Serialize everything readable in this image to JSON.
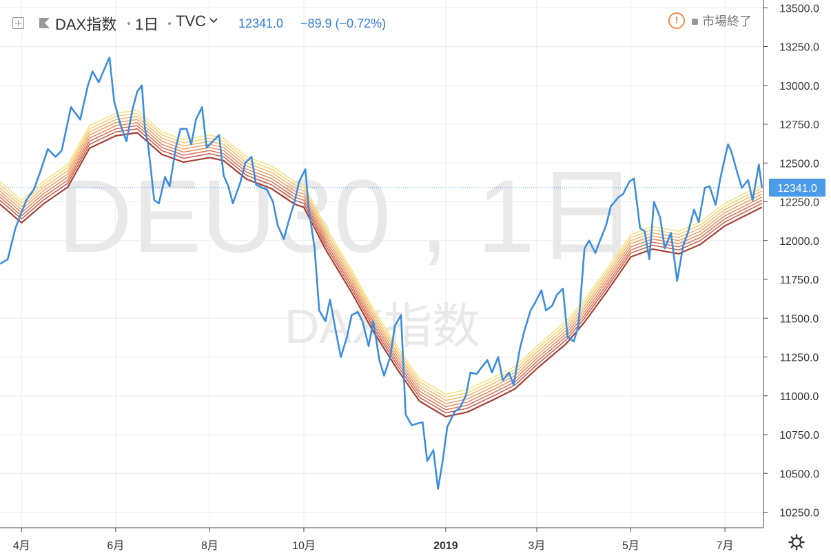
{
  "header": {
    "symbol": "DAX指数",
    "interval": "1日",
    "source": "TVC",
    "last": "12341.0",
    "change": "−89.9 (−0.72%)",
    "market_status": "市場終了"
  },
  "watermark": {
    "line1": "DEU30 , 1日",
    "line2": "DAX指数"
  },
  "colors": {
    "price": "#3b8de0",
    "grid": "#ececec",
    "axis": "#555",
    "lastprice_bg": "#4a9be8",
    "ribbon": [
      "#f5e27a",
      "#f6cf70",
      "#f3b66a",
      "#eea062",
      "#e6895a",
      "#d86f4f",
      "#c55943",
      "#a83c30"
    ]
  },
  "icons": {
    "expand": "expand-icon",
    "flag": "flag-icon",
    "warning": "warning-icon",
    "settings": "gear-icon"
  },
  "chart_data": {
    "type": "line",
    "title": "DAX指数 · 1日 · TVC",
    "ylim": [
      10150,
      13550
    ],
    "y_ticks": [
      13500,
      13250,
      13000,
      12750,
      12500,
      12250,
      12000,
      11750,
      11500,
      11250,
      11000,
      10750,
      10500,
      10250
    ],
    "y_tick_labels": [
      "13500.0",
      "13250.0",
      "13000.0",
      "12750.0",
      "12500.0",
      "12250.0",
      "12000.0",
      "11750.0",
      "11500.0",
      "11250.0",
      "11000.0",
      "10750.0",
      "10500.0",
      "10250.0"
    ],
    "last_price": 12341.0,
    "last_price_label": "12341.0",
    "x_ticks": [
      {
        "label": "4月",
        "date": "2018-04-01"
      },
      {
        "label": "6月",
        "date": "2018-06-01"
      },
      {
        "label": "8月",
        "date": "2018-08-01"
      },
      {
        "label": "10月",
        "date": "2018-10-01"
      },
      {
        "label": "2019",
        "date": "2019-01-01",
        "bold": true
      },
      {
        "label": "3月",
        "date": "2019-03-01"
      },
      {
        "label": "5月",
        "date": "2019-05-01"
      },
      {
        "label": "7月",
        "date": "2019-07-01"
      }
    ],
    "xlim": [
      "2018-03-18",
      "2019-07-26"
    ],
    "grid": true,
    "series": [
      {
        "name": "DAX指数",
        "color": "#3b8de0",
        "points": [
          [
            "2018-03-18",
            11850
          ],
          [
            "2018-03-23",
            11880
          ],
          [
            "2018-03-28",
            12080
          ],
          [
            "2018-04-04",
            12260
          ],
          [
            "2018-04-09",
            12330
          ],
          [
            "2018-04-13",
            12440
          ],
          [
            "2018-04-18",
            12590
          ],
          [
            "2018-04-23",
            12540
          ],
          [
            "2018-04-27",
            12580
          ],
          [
            "2018-05-03",
            12860
          ],
          [
            "2018-05-09",
            12780
          ],
          [
            "2018-05-14",
            13000
          ],
          [
            "2018-05-17",
            13090
          ],
          [
            "2018-05-21",
            13020
          ],
          [
            "2018-05-24",
            13090
          ],
          [
            "2018-05-28",
            13180
          ],
          [
            "2018-05-31",
            12900
          ],
          [
            "2018-06-04",
            12750
          ],
          [
            "2018-06-08",
            12640
          ],
          [
            "2018-06-12",
            12850
          ],
          [
            "2018-06-15",
            12960
          ],
          [
            "2018-06-18",
            13000
          ],
          [
            "2018-06-20",
            12720
          ],
          [
            "2018-06-22",
            12620
          ],
          [
            "2018-06-26",
            12260
          ],
          [
            "2018-06-29",
            12240
          ],
          [
            "2018-07-03",
            12410
          ],
          [
            "2018-07-06",
            12350
          ],
          [
            "2018-07-10",
            12600
          ],
          [
            "2018-07-13",
            12720
          ],
          [
            "2018-07-17",
            12720
          ],
          [
            "2018-07-20",
            12620
          ],
          [
            "2018-07-23",
            12780
          ],
          [
            "2018-07-27",
            12860
          ],
          [
            "2018-07-30",
            12600
          ],
          [
            "2018-08-03",
            12640
          ],
          [
            "2018-08-07",
            12680
          ],
          [
            "2018-08-10",
            12420
          ],
          [
            "2018-08-13",
            12350
          ],
          [
            "2018-08-16",
            12240
          ],
          [
            "2018-08-21",
            12380
          ],
          [
            "2018-08-24",
            12500
          ],
          [
            "2018-08-28",
            12540
          ],
          [
            "2018-08-31",
            12360
          ],
          [
            "2018-09-04",
            12340
          ],
          [
            "2018-09-07",
            12330
          ],
          [
            "2018-09-11",
            12250
          ],
          [
            "2018-09-14",
            12100
          ],
          [
            "2018-09-18",
            12010
          ],
          [
            "2018-09-21",
            12120
          ],
          [
            "2018-09-25",
            12250
          ],
          [
            "2018-09-28",
            12380
          ],
          [
            "2018-10-02",
            12460
          ],
          [
            "2018-10-04",
            12220
          ],
          [
            "2018-10-08",
            11950
          ],
          [
            "2018-10-11",
            11550
          ],
          [
            "2018-10-15",
            11480
          ],
          [
            "2018-10-18",
            11620
          ],
          [
            "2018-10-22",
            11400
          ],
          [
            "2018-10-25",
            11250
          ],
          [
            "2018-10-29",
            11380
          ],
          [
            "2018-11-01",
            11520
          ],
          [
            "2018-11-05",
            11540
          ],
          [
            "2018-11-08",
            11480
          ],
          [
            "2018-11-12",
            11320
          ],
          [
            "2018-11-15",
            11480
          ],
          [
            "2018-11-19",
            11230
          ],
          [
            "2018-11-22",
            11130
          ],
          [
            "2018-11-26",
            11250
          ],
          [
            "2018-11-29",
            11450
          ],
          [
            "2018-12-03",
            11520
          ],
          [
            "2018-12-06",
            10880
          ],
          [
            "2018-12-10",
            10810
          ],
          [
            "2018-12-13",
            10820
          ],
          [
            "2018-12-17",
            10830
          ],
          [
            "2018-12-20",
            10580
          ],
          [
            "2018-12-24",
            10650
          ],
          [
            "2018-12-27",
            10400
          ],
          [
            "2018-12-30",
            10580
          ],
          [
            "2019-01-02",
            10800
          ],
          [
            "2019-01-07",
            10900
          ],
          [
            "2019-01-10",
            10920
          ],
          [
            "2019-01-14",
            11000
          ],
          [
            "2019-01-17",
            11150
          ],
          [
            "2019-01-21",
            11140
          ],
          [
            "2019-01-24",
            11180
          ],
          [
            "2019-01-28",
            11230
          ],
          [
            "2019-01-31",
            11150
          ],
          [
            "2019-02-04",
            11250
          ],
          [
            "2019-02-07",
            11100
          ],
          [
            "2019-02-11",
            11150
          ],
          [
            "2019-02-14",
            11070
          ],
          [
            "2019-02-18",
            11300
          ],
          [
            "2019-02-21",
            11420
          ],
          [
            "2019-02-25",
            11550
          ],
          [
            "2019-02-28",
            11600
          ],
          [
            "2019-03-04",
            11680
          ],
          [
            "2019-03-07",
            11550
          ],
          [
            "2019-03-11",
            11580
          ],
          [
            "2019-03-14",
            11650
          ],
          [
            "2019-03-18",
            11690
          ],
          [
            "2019-03-21",
            11380
          ],
          [
            "2019-03-25",
            11350
          ],
          [
            "2019-03-28",
            11450
          ],
          [
            "2019-04-01",
            11950
          ],
          [
            "2019-04-04",
            12000
          ],
          [
            "2019-04-08",
            11920
          ],
          [
            "2019-04-11",
            12000
          ],
          [
            "2019-04-15",
            12100
          ],
          [
            "2019-04-18",
            12220
          ],
          [
            "2019-04-23",
            12280
          ],
          [
            "2019-04-26",
            12300
          ],
          [
            "2019-04-30",
            12380
          ],
          [
            "2019-05-03",
            12400
          ],
          [
            "2019-05-07",
            12080
          ],
          [
            "2019-05-10",
            12060
          ],
          [
            "2019-05-13",
            11880
          ],
          [
            "2019-05-16",
            12250
          ],
          [
            "2019-05-20",
            12150
          ],
          [
            "2019-05-23",
            11950
          ],
          [
            "2019-05-27",
            12050
          ],
          [
            "2019-05-31",
            11740
          ],
          [
            "2019-06-04",
            11970
          ],
          [
            "2019-06-07",
            12050
          ],
          [
            "2019-06-11",
            12200
          ],
          [
            "2019-06-14",
            12120
          ],
          [
            "2019-06-18",
            12340
          ],
          [
            "2019-06-21",
            12350
          ],
          [
            "2019-06-25",
            12230
          ],
          [
            "2019-06-28",
            12400
          ],
          [
            "2019-07-03",
            12620
          ],
          [
            "2019-07-05",
            12580
          ],
          [
            "2019-07-09",
            12440
          ],
          [
            "2019-07-12",
            12340
          ],
          [
            "2019-07-16",
            12390
          ],
          [
            "2019-07-19",
            12260
          ],
          [
            "2019-07-23",
            12490
          ],
          [
            "2019-07-25",
            12341
          ]
        ]
      }
    ],
    "ribbon": {
      "description": "8 moving-average bands (yellow to dark red)",
      "center": [
        [
          "2018-03-18",
          12320
        ],
        [
          "2018-04-01",
          12200
        ],
        [
          "2018-04-15",
          12320
        ],
        [
          "2018-05-01",
          12430
        ],
        [
          "2018-05-15",
          12680
        ],
        [
          "2018-06-01",
          12760
        ],
        [
          "2018-06-15",
          12780
        ],
        [
          "2018-07-01",
          12640
        ],
        [
          "2018-07-15",
          12590
        ],
        [
          "2018-08-01",
          12620
        ],
        [
          "2018-08-10",
          12600
        ],
        [
          "2018-08-25",
          12480
        ],
        [
          "2018-09-10",
          12420
        ],
        [
          "2018-09-25",
          12320
        ],
        [
          "2018-10-01",
          12300
        ],
        [
          "2018-10-15",
          12030
        ],
        [
          "2018-11-01",
          11750
        ],
        [
          "2018-11-15",
          11500
        ],
        [
          "2018-12-01",
          11250
        ],
        [
          "2018-12-15",
          11050
        ],
        [
          "2019-01-01",
          10950
        ],
        [
          "2019-01-15",
          10980
        ],
        [
          "2019-02-01",
          11060
        ],
        [
          "2019-02-15",
          11130
        ],
        [
          "2019-03-01",
          11260
        ],
        [
          "2019-03-20",
          11420
        ],
        [
          "2019-04-01",
          11560
        ],
        [
          "2019-04-15",
          11750
        ],
        [
          "2019-05-01",
          11980
        ],
        [
          "2019-05-15",
          12030
        ],
        [
          "2019-06-01",
          12000
        ],
        [
          "2019-06-15",
          12060
        ],
        [
          "2019-07-01",
          12180
        ],
        [
          "2019-07-25",
          12300
        ]
      ],
      "offsets": [
        60,
        40,
        20,
        0,
        -20,
        -40,
        -60,
        -85
      ]
    }
  }
}
